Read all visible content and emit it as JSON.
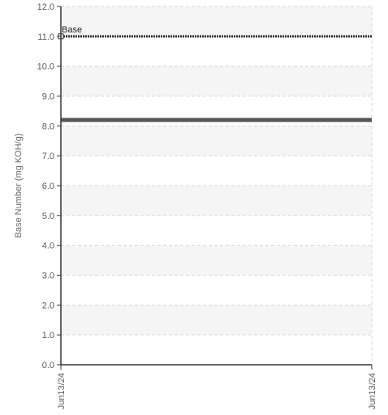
{
  "chart_data": {
    "type": "line",
    "title": "",
    "xlabel": "",
    "ylabel": "Base Number (mg KOH/g)",
    "ylim": [
      0,
      12
    ],
    "y_ticks": [
      "0.0",
      "1.0",
      "2.0",
      "3.0",
      "4.0",
      "5.0",
      "6.0",
      "7.0",
      "8.0",
      "9.0",
      "10.0",
      "11.0",
      "12.0"
    ],
    "x_ticks": [
      "Jun13/24",
      "Jun13/24"
    ],
    "grid": true,
    "series": [
      {
        "name": "",
        "values": [
          8.2,
          8.2
        ],
        "color": "#555555",
        "style": "solid"
      }
    ],
    "reference_lines": [
      {
        "label": "Base",
        "value": 11.0,
        "color": "#333333",
        "style": "dotted"
      }
    ]
  }
}
